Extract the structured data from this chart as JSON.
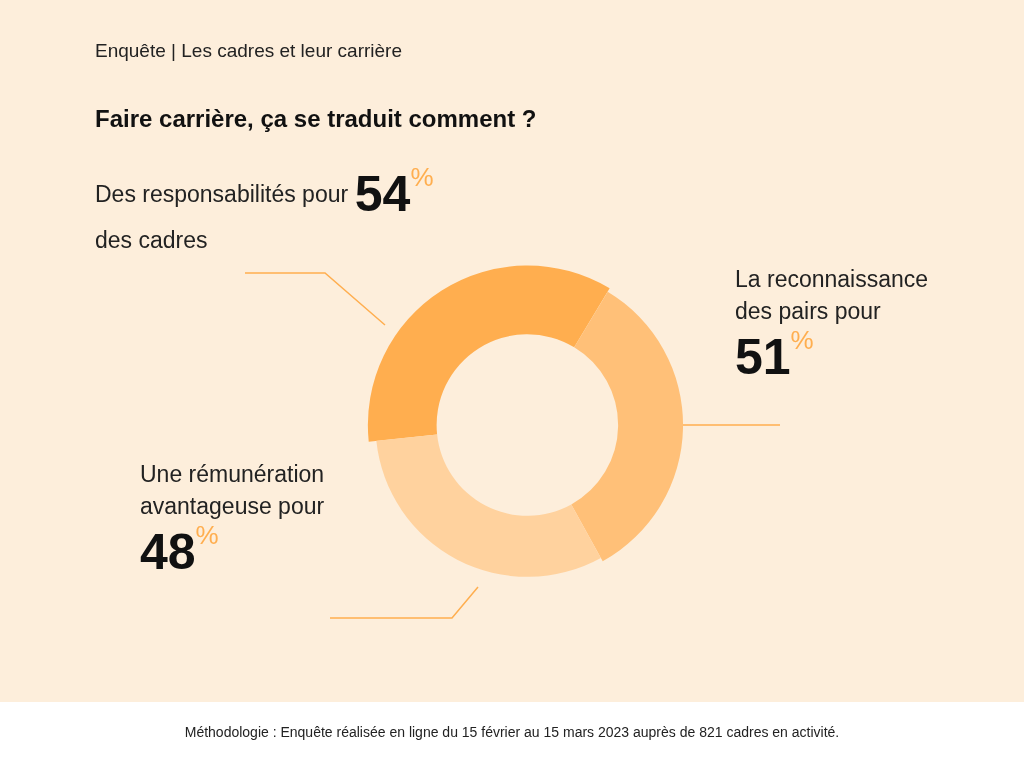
{
  "chart_data": {
    "type": "donut",
    "subtitle": "Enquête | Les cadres et leur carrière",
    "title": "Faire carrière, ça se traduit comment ?",
    "categories": [
      "Des responsabilités pour des cadres",
      "La reconnaissance des pairs pour",
      "Une rémunération avantageuse pour"
    ],
    "values": [
      54,
      51,
      48
    ],
    "value_labels": [
      "54%",
      "51%",
      "48%"
    ],
    "colors": [
      "#ffae4f",
      "#ffc078",
      "#ffd29e"
    ],
    "legend": false,
    "annotations": [
      "Méthodologie : Enquête réalisée en ligne du 15 février au 15 mars 2023 auprès de 821 cadres en activité."
    ]
  }
}
